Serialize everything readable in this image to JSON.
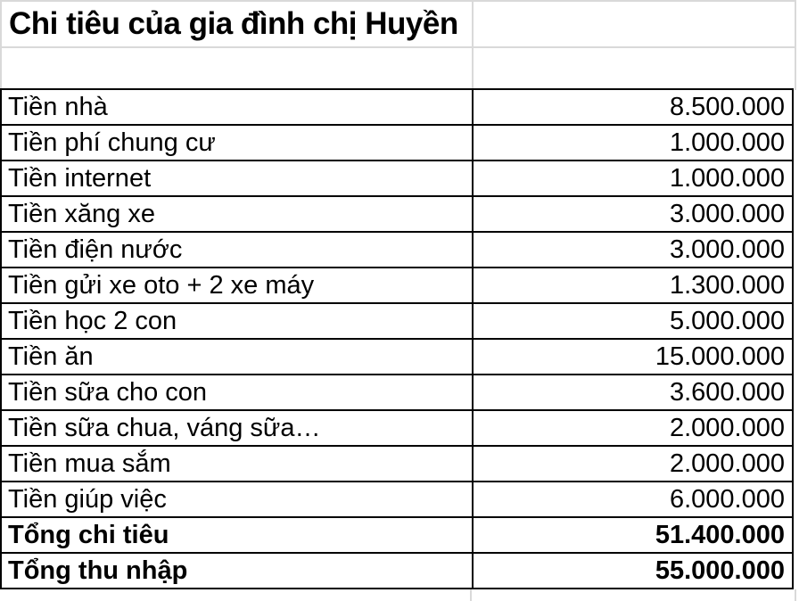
{
  "title": "Chi tiêu của gia đình chị Huyền",
  "colors": {
    "background": "#ffffff",
    "text": "#000000",
    "table_border": "#000000",
    "grid_line": "#d9d9d9"
  },
  "table": {
    "rows": [
      {
        "label": "Tiền nhà",
        "value": "8.500.000"
      },
      {
        "label": "Tiền phí chung cư",
        "value": "1.000.000"
      },
      {
        "label": "Tiền internet",
        "value": "1.000.000"
      },
      {
        "label": "Tiền xăng xe",
        "value": "3.000.000"
      },
      {
        "label": "Tiền điện nước",
        "value": "3.000.000"
      },
      {
        "label": "Tiền gửi xe oto + 2 xe máy",
        "value": "1.300.000"
      },
      {
        "label": "Tiền học 2 con",
        "value": "5.000.000"
      },
      {
        "label": "Tiền ăn",
        "value": "15.000.000"
      },
      {
        "label": "Tiền sữa cho con",
        "value": "3.600.000"
      },
      {
        "label": "Tiền sữa chua, váng sữa…",
        "value": "2.000.000"
      },
      {
        "label": "Tiền mua sắm",
        "value": "2.000.000"
      },
      {
        "label": "Tiền giúp việc",
        "value": "6.000.000"
      },
      {
        "label": "Tổng chi tiêu",
        "value": "51.400.000",
        "bold": true
      },
      {
        "label": "Tổng thu nhập",
        "value": "55.000.000",
        "bold": true
      }
    ]
  }
}
